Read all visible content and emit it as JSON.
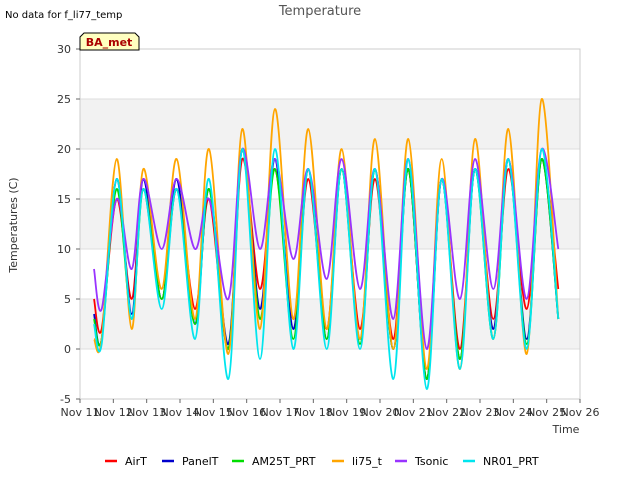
{
  "page": {
    "no_data_note": "No data for f_li77_temp",
    "station_badge": "BA_met"
  },
  "chart_data": {
    "type": "line",
    "title": "Temperature",
    "xlabel": "Time",
    "ylabel": "Temperatures (C)",
    "xlim": [
      11,
      26
    ],
    "ylim": [
      -5,
      30
    ],
    "x_ticks": [
      11,
      12,
      13,
      14,
      15,
      16,
      17,
      18,
      19,
      20,
      21,
      22,
      23,
      24,
      25,
      26
    ],
    "x_tick_labels": [
      "Nov 11",
      "Nov 12",
      "Nov 13",
      "Nov 14",
      "Nov 15",
      "Nov 16",
      "Nov 17",
      "Nov 18",
      "Nov 19",
      "Nov 20",
      "Nov 21",
      "Nov 22",
      "Nov 23",
      "Nov 24",
      "Nov 25",
      "Nov 26"
    ],
    "y_ticks": [
      -5,
      0,
      5,
      10,
      15,
      20,
      25,
      30
    ],
    "y_tick_labels": [
      "-5",
      "0",
      "5",
      "10",
      "15",
      "20",
      "25",
      "30"
    ],
    "grid": true,
    "band_shading": "alternate 5-degree bands shaded light gray",
    "legend_position": "bottom",
    "day_nodes": [
      11.42,
      11.65,
      12.1,
      12.55,
      12.9,
      13.45,
      13.9,
      14.45,
      14.87,
      15.45,
      15.87,
      16.4,
      16.85,
      17.4,
      17.85,
      18.4,
      18.85,
      19.4,
      19.85,
      20.4,
      20.85,
      21.4,
      21.85,
      22.4,
      22.85,
      23.4,
      23.85,
      24.4,
      24.85,
      25.35
    ],
    "series": [
      {
        "name": "AirT",
        "color": "#ff0000",
        "values": [
          5,
          2,
          15,
          5,
          16,
          5,
          16,
          4,
          15,
          0,
          19,
          6,
          18,
          3,
          17,
          2,
          18,
          2,
          17,
          1,
          18,
          -3,
          17,
          0,
          18,
          3,
          18,
          4,
          19,
          6
        ]
      },
      {
        "name": "PanelT",
        "color": "#0000cc",
        "values": [
          3.5,
          1,
          17,
          3.5,
          17,
          5,
          17,
          2.5,
          16,
          0.5,
          20,
          4,
          19,
          2,
          18,
          1,
          18,
          1,
          18,
          0,
          18,
          -3,
          17,
          -1,
          18,
          2,
          19,
          1,
          19,
          3
        ]
      },
      {
        "name": "AM25T_PRT",
        "color": "#00dd00",
        "values": [
          3,
          1,
          16,
          3,
          16,
          5,
          16,
          2.5,
          16,
          0,
          20,
          3,
          18,
          1,
          18,
          1,
          18,
          0.5,
          18,
          0,
          18,
          -3,
          17,
          -1,
          18,
          1,
          19,
          0.5,
          19,
          3
        ]
      },
      {
        "name": "li75_t",
        "color": "#ffa500",
        "values": [
          1,
          1,
          19,
          2,
          18,
          6,
          19,
          3,
          20,
          -0.5,
          22,
          2,
          24,
          3,
          22,
          2,
          20,
          1,
          21,
          0,
          21,
          -2,
          19,
          -2,
          21,
          1,
          22,
          -0.5,
          25,
          3
        ]
      },
      {
        "name": "Tsonic",
        "color": "#9933ff",
        "values": [
          8,
          4,
          15,
          8,
          17,
          10,
          17,
          10,
          15,
          5,
          20,
          10,
          19,
          9,
          18,
          7,
          19,
          6,
          18,
          3,
          19,
          0,
          17,
          5,
          19,
          6,
          19,
          5,
          20,
          10
        ]
      },
      {
        "name": "NR01_PRT",
        "color": "#00e5ee",
        "values": [
          2.5,
          0.5,
          17,
          3,
          16,
          4,
          16,
          1,
          17,
          -3,
          20,
          -1,
          20,
          0,
          18,
          0,
          18,
          0,
          18,
          -3,
          19,
          -4,
          17,
          -2,
          18,
          1,
          19,
          0,
          20,
          3
        ]
      }
    ]
  }
}
